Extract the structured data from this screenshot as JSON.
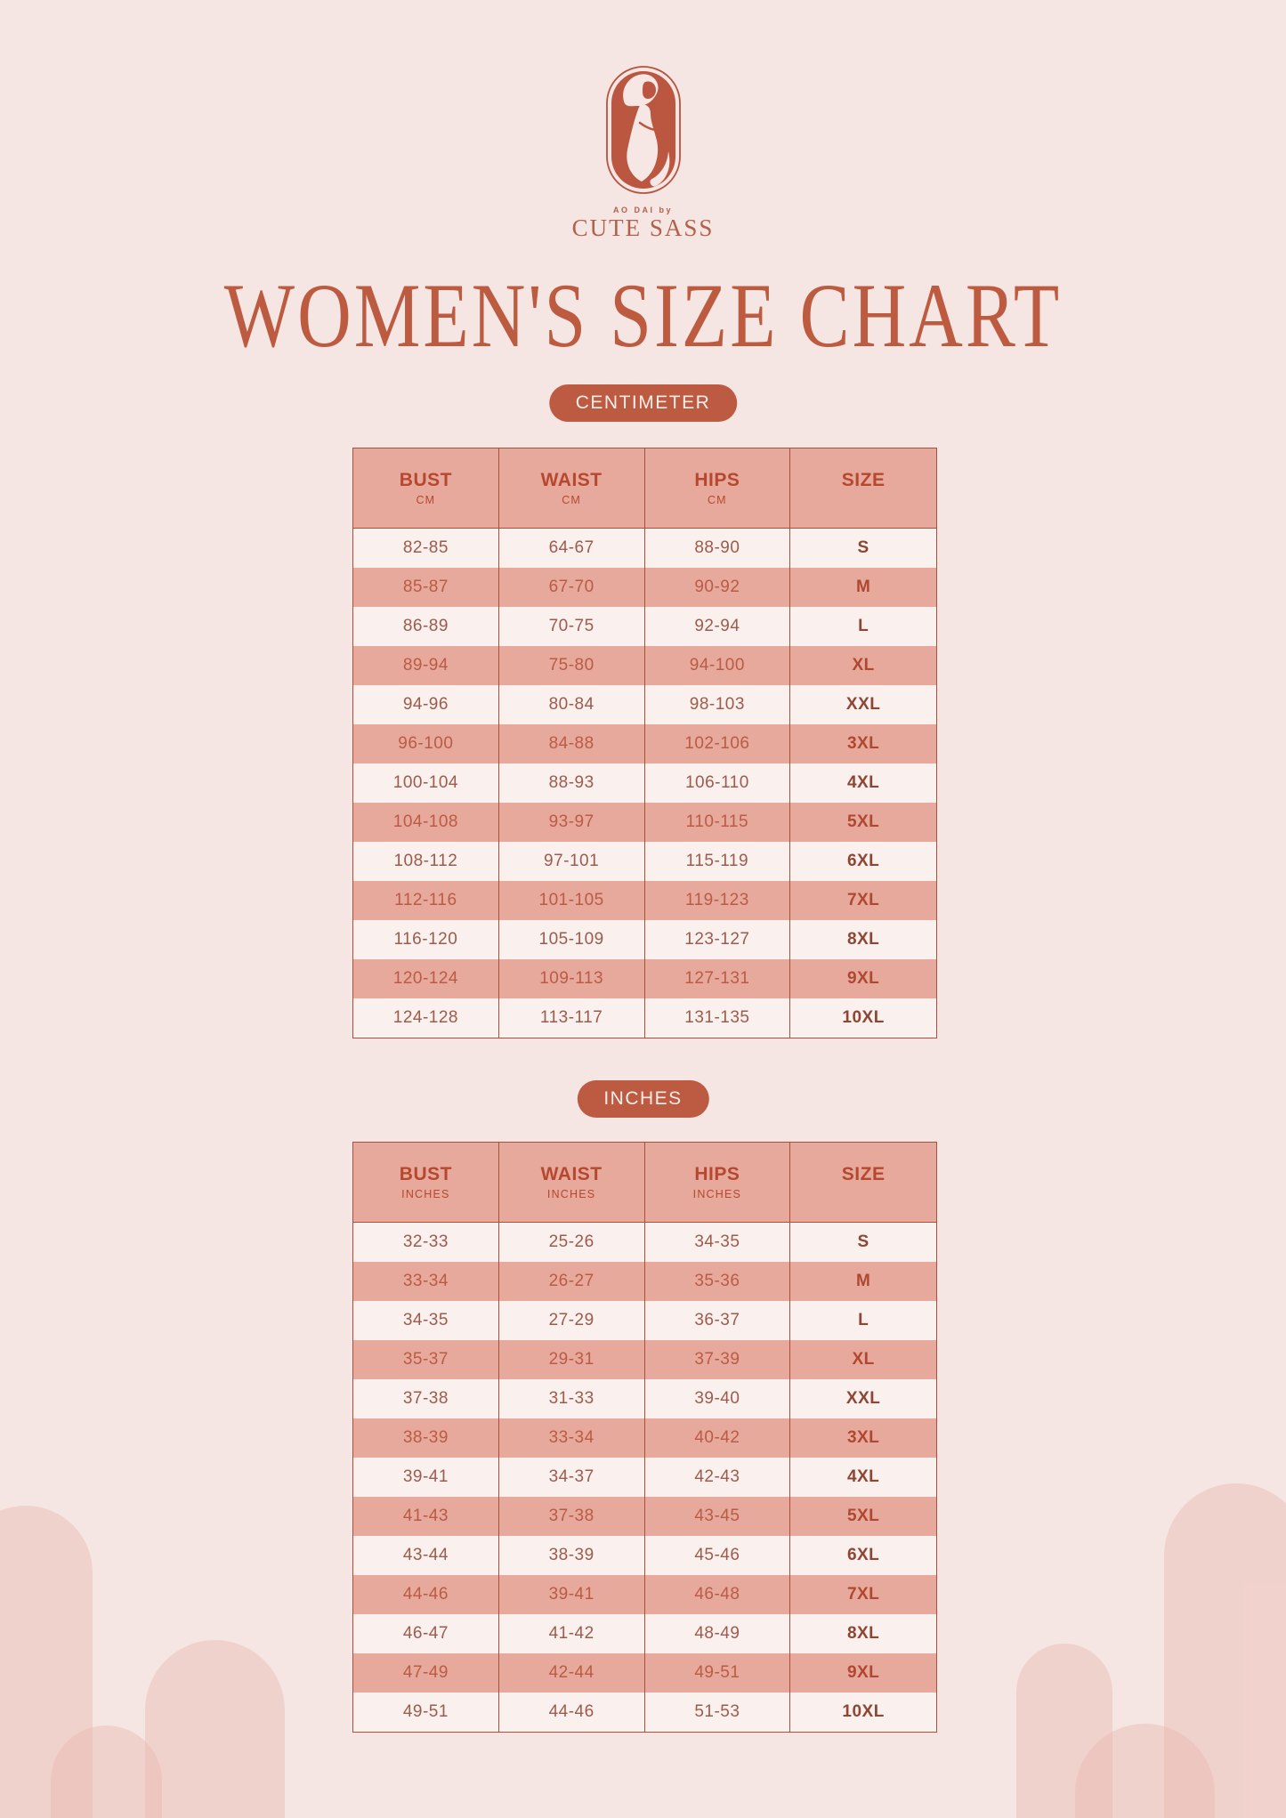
{
  "title": "WOMEN'S SIZE CHART",
  "brand": {
    "tagline": "AO DAI by",
    "name": "CUTE SASS"
  },
  "colors": {
    "background": "#F6E6E3",
    "accent_terracotta": "#BC5B41",
    "title_text": "#BD5B40",
    "table_border": "#A7503B",
    "header_row_bg": "#E7A99C",
    "row_light_bg": "#FAF0ED",
    "row_pink_bg": "#E7A99C",
    "badge_text": "#F8EEE9",
    "arch_decoration": "rgba(233,181,172,0.40)"
  },
  "sections": [
    {
      "badge": "CENTIMETER",
      "columns": [
        {
          "label": "BUST",
          "sub": "CM"
        },
        {
          "label": "WAIST",
          "sub": "CM"
        },
        {
          "label": "HIPS",
          "sub": "CM"
        },
        {
          "label": "SIZE",
          "sub": ""
        }
      ],
      "rows": [
        [
          "82-85",
          "64-67",
          "88-90",
          "S"
        ],
        [
          "85-87",
          "67-70",
          "90-92",
          "M"
        ],
        [
          "86-89",
          "70-75",
          "92-94",
          "L"
        ],
        [
          "89-94",
          "75-80",
          "94-100",
          "XL"
        ],
        [
          "94-96",
          "80-84",
          "98-103",
          "XXL"
        ],
        [
          "96-100",
          "84-88",
          "102-106",
          "3XL"
        ],
        [
          "100-104",
          "88-93",
          "106-110",
          "4XL"
        ],
        [
          "104-108",
          "93-97",
          "110-115",
          "5XL"
        ],
        [
          "108-112",
          "97-101",
          "115-119",
          "6XL"
        ],
        [
          "112-116",
          "101-105",
          "119-123",
          "7XL"
        ],
        [
          "116-120",
          "105-109",
          "123-127",
          "8XL"
        ],
        [
          "120-124",
          "109-113",
          "127-131",
          "9XL"
        ],
        [
          "124-128",
          "113-117",
          "131-135",
          "10XL"
        ]
      ]
    },
    {
      "badge": "INCHES",
      "columns": [
        {
          "label": "BUST",
          "sub": "INCHES"
        },
        {
          "label": "WAIST",
          "sub": "INCHES"
        },
        {
          "label": "HIPS",
          "sub": "INCHES"
        },
        {
          "label": "SIZE",
          "sub": ""
        }
      ],
      "rows": [
        [
          "32-33",
          "25-26",
          "34-35",
          "S"
        ],
        [
          "33-34",
          "26-27",
          "35-36",
          "M"
        ],
        [
          "34-35",
          "27-29",
          "36-37",
          "L"
        ],
        [
          "35-37",
          "29-31",
          "37-39",
          "XL"
        ],
        [
          "37-38",
          "31-33",
          "39-40",
          "XXL"
        ],
        [
          "38-39",
          "33-34",
          "40-42",
          "3XL"
        ],
        [
          "39-41",
          "34-37",
          "42-43",
          "4XL"
        ],
        [
          "41-43",
          "37-38",
          "43-45",
          "5XL"
        ],
        [
          "43-44",
          "38-39",
          "45-46",
          "6XL"
        ],
        [
          "44-46",
          "39-41",
          "46-48",
          "7XL"
        ],
        [
          "46-47",
          "41-42",
          "48-49",
          "8XL"
        ],
        [
          "47-49",
          "42-44",
          "49-51",
          "9XL"
        ],
        [
          "49-51",
          "44-46",
          "51-53",
          "10XL"
        ]
      ]
    }
  ]
}
